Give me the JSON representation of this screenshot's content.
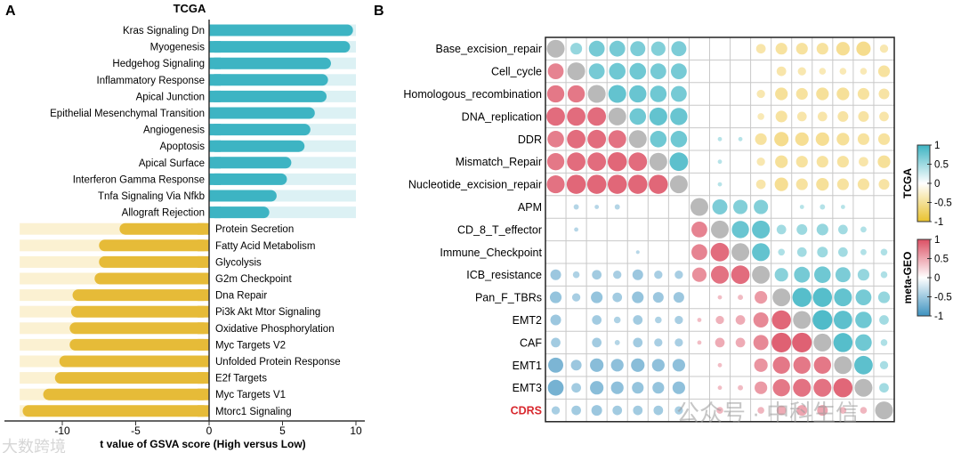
{
  "panel_labels": {
    "a": "A",
    "b": "B"
  },
  "watermarks": {
    "left": "大数跨境",
    "right": "公众号 · 中科生信"
  },
  "chart_data": [
    {
      "type": "bar",
      "orientation": "horizontal",
      "title": "TCGA",
      "xlabel": "t value of GSVA score (High versus Low)",
      "xlim": [
        -13,
        10
      ],
      "xticks": [
        "-10",
        "-5",
        "0",
        "5",
        "10"
      ],
      "xtick_values": [
        -10,
        -5,
        0,
        5,
        10
      ],
      "colors": {
        "positive": "#3db4c3",
        "positive_bg": "#dcf1f4",
        "negative": "#e6bb38",
        "negative_bg": "#fbf1d2"
      },
      "categories": [
        "Kras Signaling Dn",
        "Myogenesis",
        "Hedgehog Signaling",
        "Inflammatory Response",
        "Apical Junction",
        "Epithelial Mesenchymal Transition",
        "Angiogenesis",
        "Apoptosis",
        "Apical Surface",
        "Interferon Gamma Response",
        "Tnfa Signaling Via Nfkb",
        "Allograft Rejection",
        "Protein Secretion",
        "Fatty Acid Metabolism",
        "Glycolysis",
        "G2m Checkpoint",
        "Dna Repair",
        "Pi3k Akt Mtor Signaling",
        "Oxidative Phosphorylation",
        "Myc Targets V2",
        "Unfolded Protein Response",
        "E2f Targets",
        "Myc Targets V1",
        "Mtorc1 Signaling"
      ],
      "values": [
        9.8,
        9.6,
        8.3,
        8.1,
        8.0,
        7.2,
        6.9,
        6.5,
        5.6,
        5.3,
        4.6,
        4.1,
        -6.1,
        -7.5,
        -7.5,
        -7.8,
        -9.3,
        -9.4,
        -9.5,
        -9.5,
        -10.2,
        -10.5,
        -11.3,
        -12.7
      ]
    },
    {
      "type": "heatmap",
      "subtype": "correlation-circles",
      "upper_triangle": "TCGA",
      "lower_triangle": "meta-GEO",
      "labels": [
        "Base_excision_repair",
        "Cell_cycle",
        "Homologous_recombination",
        "DNA_replication",
        "DDR",
        "Mismatch_Repair",
        "Nucleotide_excision_repair",
        "APM",
        "CD_8_T_effector",
        "Immune_Checkpoint",
        "ICB_resistance",
        "Pan_F_TBRs",
        "EMT2",
        "CAF",
        "EMT1",
        "EMT3",
        "CDRS"
      ],
      "highlight_label_color": "#d8282e",
      "colors": {
        "tcga_pos": "#3db4c3",
        "tcga_neg": "#f0c94e",
        "geo_pos": "#dc5064",
        "geo_neg": "#3d92c0",
        "diagonal": "#b9b9b9"
      },
      "matrix": [
        [
          1,
          0.3,
          0.55,
          0.55,
          0.5,
          0.45,
          0.5,
          0,
          0,
          0,
          -0.2,
          -0.3,
          -0.3,
          -0.3,
          -0.4,
          -0.45,
          -0.15
        ],
        [
          0.55,
          1,
          0.55,
          0.6,
          0.6,
          0.55,
          0.55,
          0,
          0,
          0,
          0,
          -0.2,
          -0.15,
          -0.1,
          -0.1,
          -0.1,
          -0.3
        ],
        [
          0.65,
          0.65,
          1,
          0.7,
          0.65,
          0.6,
          0.55,
          0,
          0,
          0,
          -0.15,
          -0.35,
          -0.3,
          -0.35,
          -0.35,
          -0.3,
          -0.25
        ],
        [
          0.75,
          0.75,
          0.75,
          1,
          0.6,
          0.7,
          0.65,
          0,
          0,
          0,
          -0.1,
          -0.3,
          -0.2,
          -0.2,
          -0.25,
          -0.25,
          -0.2
        ],
        [
          0.6,
          0.75,
          0.75,
          0.7,
          1,
          0.6,
          0.6,
          0,
          0.04,
          0.04,
          -0.3,
          -0.45,
          -0.4,
          -0.4,
          -0.35,
          -0.3,
          -0.3
        ],
        [
          0.65,
          0.75,
          0.75,
          0.8,
          0.75,
          1,
          0.75,
          0,
          0.04,
          0,
          -0.15,
          -0.35,
          -0.3,
          -0.3,
          -0.3,
          -0.2,
          -0.35
        ],
        [
          0.7,
          0.8,
          0.8,
          0.8,
          0.8,
          0.8,
          1,
          0,
          0.04,
          0,
          -0.2,
          -0.4,
          -0.3,
          -0.35,
          -0.3,
          -0.3,
          -0.25
        ],
        [
          0,
          -0.06,
          -0.04,
          -0.06,
          0,
          0,
          0,
          1,
          0.5,
          0.45,
          0.45,
          0,
          0.04,
          0.06,
          0.04,
          0,
          0
        ],
        [
          0,
          -0.04,
          0,
          0,
          0,
          0,
          0,
          0.55,
          1,
          0.65,
          0.7,
          0.2,
          0.25,
          0.3,
          0.2,
          0.08,
          0
        ],
        [
          0,
          0,
          0,
          0,
          -0.03,
          0,
          0,
          0.55,
          0.75,
          1,
          0.7,
          0.1,
          0.2,
          0.25,
          0.2,
          0.08,
          0.1
        ],
        [
          -0.25,
          -0.1,
          -0.2,
          -0.15,
          -0.25,
          -0.15,
          -0.15,
          0.45,
          0.7,
          0.75,
          1,
          0.4,
          0.55,
          0.6,
          0.5,
          0.3,
          0.1
        ],
        [
          -0.3,
          -0.15,
          -0.3,
          -0.2,
          -0.3,
          -0.25,
          -0.25,
          0,
          0.04,
          0.06,
          0.35,
          1,
          0.8,
          0.8,
          0.7,
          0.55,
          0.3
        ],
        [
          -0.25,
          0,
          -0.2,
          -0.1,
          -0.2,
          -0.1,
          -0.15,
          0.04,
          0.15,
          0.2,
          0.5,
          0.8,
          1,
          0.85,
          0.75,
          0.6,
          0.2
        ],
        [
          -0.2,
          0,
          -0.2,
          -0.06,
          -0.2,
          -0.15,
          -0.15,
          0.04,
          0.2,
          0.2,
          0.5,
          0.85,
          0.85,
          1,
          0.8,
          0.6,
          0.1
        ],
        [
          -0.5,
          -0.25,
          -0.4,
          -0.35,
          -0.4,
          -0.35,
          -0.35,
          0,
          0.04,
          0,
          0.4,
          0.65,
          0.65,
          0.65,
          1,
          0.75,
          0.15
        ],
        [
          -0.55,
          -0.2,
          -0.4,
          -0.35,
          -0.3,
          -0.3,
          -0.35,
          0,
          0.04,
          0.06,
          0.35,
          0.65,
          0.7,
          0.7,
          0.8,
          1,
          0.2
        ],
        [
          -0.15,
          -0.2,
          -0.25,
          -0.2,
          -0.2,
          -0.2,
          -0.15,
          0,
          0.1,
          0,
          0.1,
          0.2,
          0.25,
          0.25,
          0.1,
          0.1,
          1
        ]
      ],
      "legends": [
        {
          "title": "TCGA",
          "ticks": [
            "1",
            "0.5",
            "0",
            "-0.5",
            "-1"
          ],
          "colors": [
            "#3db4c3",
            "#ffffff",
            "#e9c22e"
          ]
        },
        {
          "title": "meta-GEO",
          "ticks": [
            "1",
            "0.5",
            "0",
            "-0.5",
            "-1"
          ],
          "colors": [
            "#dc5064",
            "#ffffff",
            "#3d92c0"
          ]
        }
      ]
    }
  ]
}
